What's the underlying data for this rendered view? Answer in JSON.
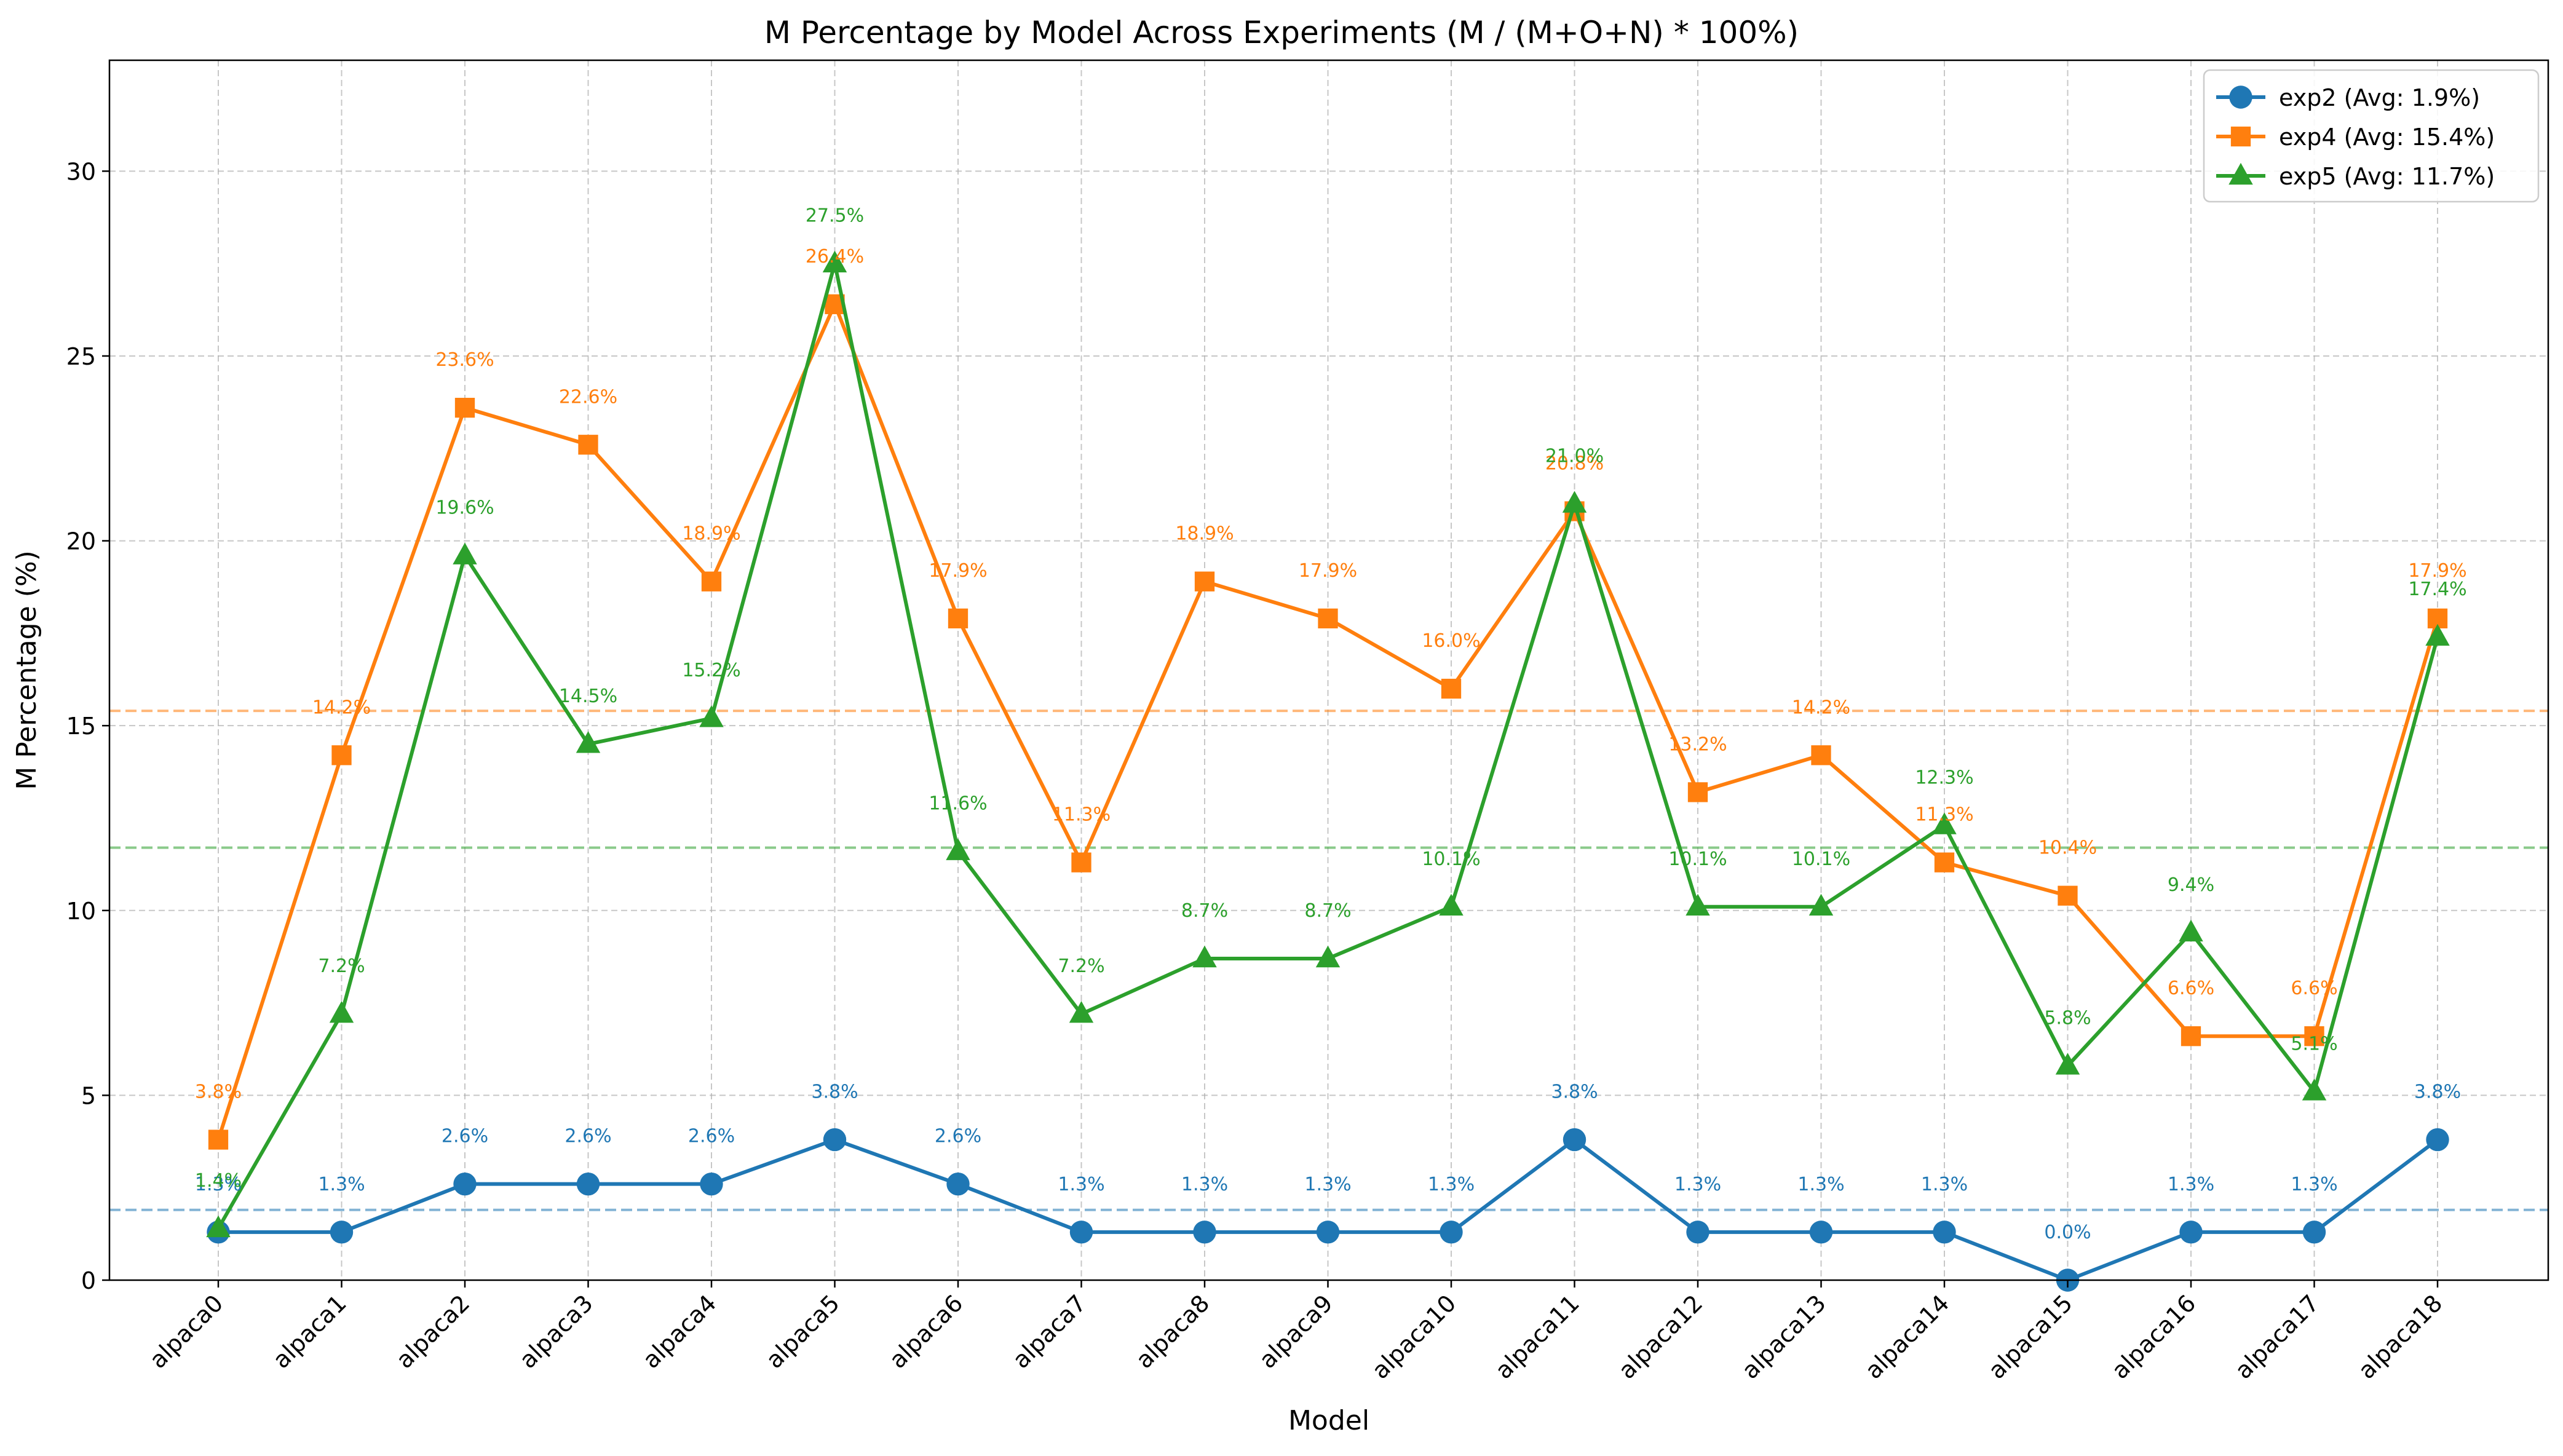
{
  "chart_data": {
    "type": "line",
    "title": "M Percentage by Model Across Experiments (M / (M+O+N) * 100%)",
    "xlabel": "Model",
    "ylabel": "M Percentage (%)",
    "categories": [
      "alpaca0",
      "alpaca1",
      "alpaca2",
      "alpaca3",
      "alpaca4",
      "alpaca5",
      "alpaca6",
      "alpaca7",
      "alpaca8",
      "alpaca9",
      "alpaca10",
      "alpaca11",
      "alpaca12",
      "alpaca13",
      "alpaca14",
      "alpaca15",
      "alpaca16",
      "alpaca17",
      "alpaca18"
    ],
    "ylim": [
      0,
      33
    ],
    "yticks": [
      0,
      5,
      10,
      15,
      20,
      25,
      30
    ],
    "grid": true,
    "legend_position": "top-right",
    "series": [
      {
        "name": "exp2 (Avg: 1.9%)",
        "color": "#1f77b4",
        "marker": "circle",
        "average": 1.9,
        "values": [
          1.3,
          1.3,
          2.6,
          2.6,
          2.6,
          3.8,
          2.6,
          1.3,
          1.3,
          1.3,
          1.3,
          3.8,
          1.3,
          1.3,
          1.3,
          0.0,
          1.3,
          1.3,
          3.8
        ],
        "labels": [
          "1.3%",
          "1.3%",
          "2.6%",
          "2.6%",
          "2.6%",
          "3.8%",
          "2.6%",
          "1.3%",
          "1.3%",
          "1.3%",
          "1.3%",
          "3.8%",
          "1.3%",
          "1.3%",
          "1.3%",
          "0.0%",
          "1.3%",
          "1.3%",
          "3.8%"
        ]
      },
      {
        "name": "exp4 (Avg: 15.4%)",
        "color": "#ff7f0e",
        "marker": "square",
        "average": 15.4,
        "values": [
          3.8,
          14.2,
          23.6,
          22.6,
          18.9,
          26.4,
          17.9,
          11.3,
          18.9,
          17.9,
          16.0,
          20.8,
          13.2,
          14.2,
          11.3,
          10.4,
          6.6,
          6.6,
          17.9
        ],
        "labels": [
          "3.8%",
          "14.2%",
          "23.6%",
          "22.6%",
          "18.9%",
          "26.4%",
          "17.9%",
          "11.3%",
          "18.9%",
          "17.9%",
          "16.0%",
          "20.8%",
          "13.2%",
          "14.2%",
          "11.3%",
          "10.4%",
          "6.6%",
          "6.6%",
          "17.9%"
        ]
      },
      {
        "name": "exp5 (Avg: 11.7%)",
        "color": "#2ca02c",
        "marker": "triangle",
        "average": 11.7,
        "values": [
          1.4,
          7.2,
          19.6,
          14.5,
          15.2,
          27.5,
          11.6,
          7.2,
          8.7,
          8.7,
          10.1,
          21.0,
          10.1,
          10.1,
          12.3,
          5.8,
          9.4,
          5.1,
          17.4
        ],
        "labels": [
          "1.4%",
          "7.2%",
          "19.6%",
          "14.5%",
          "15.2%",
          "27.5%",
          "11.6%",
          "7.2%",
          "8.7%",
          "8.7%",
          "10.1%",
          "21.0%",
          "10.1%",
          "10.1%",
          "12.3%",
          "5.8%",
          "9.4%",
          "5.1%",
          "17.4%"
        ]
      }
    ]
  }
}
